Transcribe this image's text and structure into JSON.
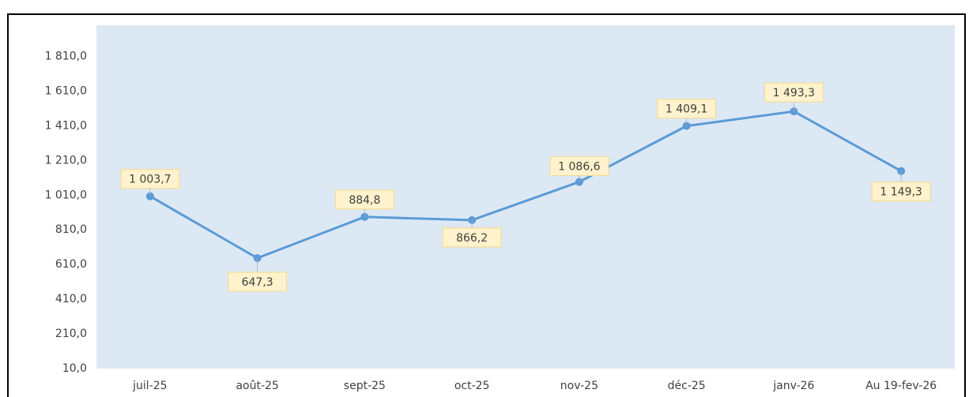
{
  "chart_data": {
    "type": "line",
    "categories": [
      "juil-25",
      "août-25",
      "sept-25",
      "oct-25",
      "nov-25",
      "déc-25",
      "janv-26",
      "Au 19-fev-26"
    ],
    "series": [
      {
        "name": null,
        "color": "#5b9bd5",
        "values": [
          1003.7,
          647.3,
          884.8,
          866.2,
          1086.6,
          1409.1,
          1493.3,
          1149.3
        ],
        "value_labels": [
          "1 003,7",
          "647,3",
          "884,8",
          "866,2",
          "1 086,6",
          "1 409,1",
          "1 493,3",
          "1 149,3"
        ]
      }
    ],
    "ylim": [
      10,
      1990
    ],
    "yticks": [
      {
        "value": 10,
        "label": "10,0"
      },
      {
        "value": 210,
        "label": "210,0"
      },
      {
        "value": 410,
        "label": "410,0"
      },
      {
        "value": 610,
        "label": "610,0"
      },
      {
        "value": 810,
        "label": "810,0"
      },
      {
        "value": 1010,
        "label": "1 010,0"
      },
      {
        "value": 1210,
        "label": "1 210,0"
      },
      {
        "value": 1410,
        "label": "1 410,0"
      },
      {
        "value": 1610,
        "label": "1 610,0"
      },
      {
        "value": 1810,
        "label": "1 810,0"
      }
    ],
    "grid": false
  }
}
